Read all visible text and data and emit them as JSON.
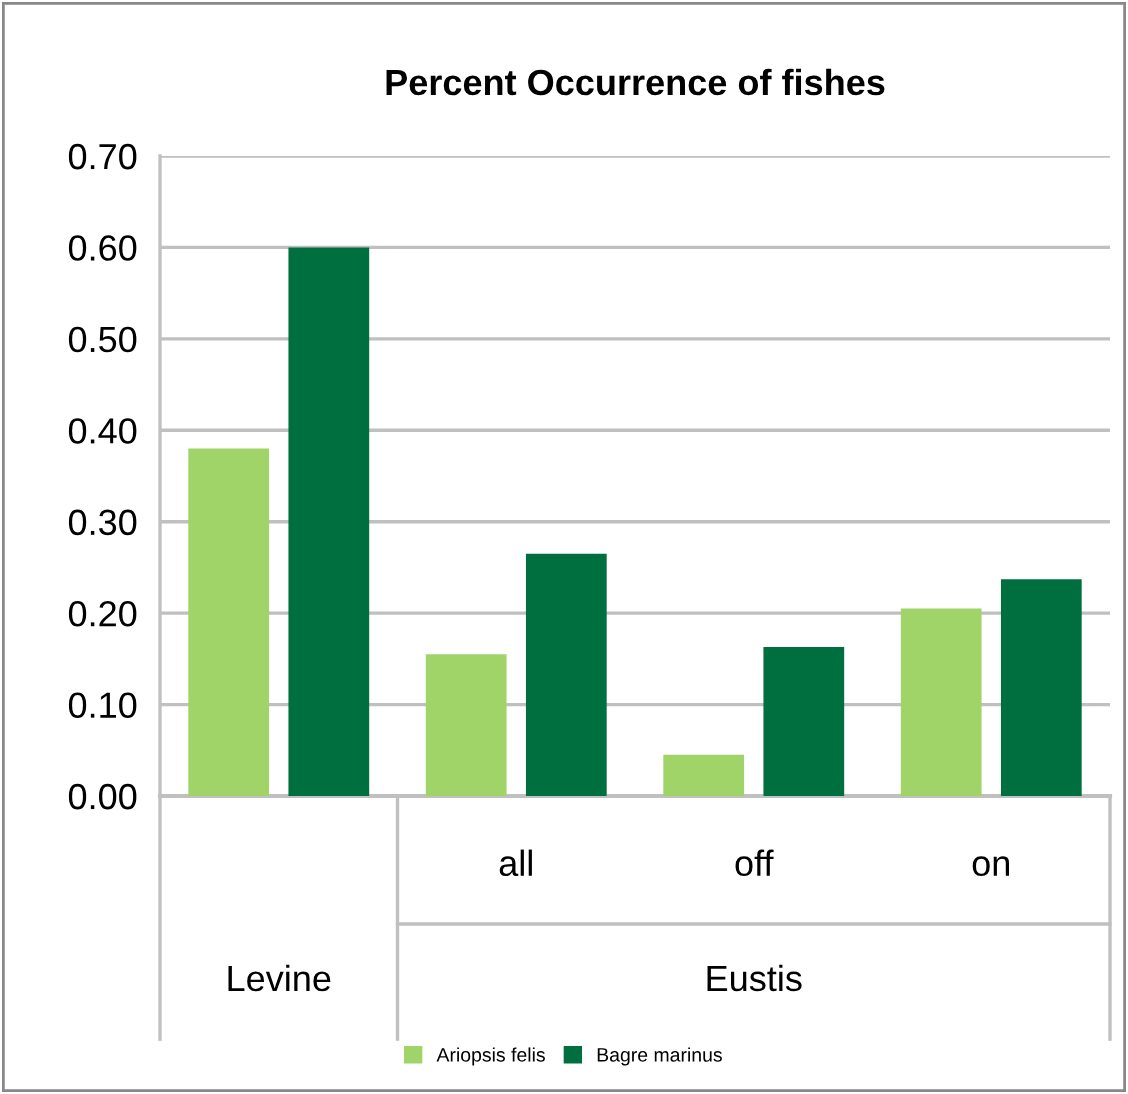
{
  "chart_data": {
    "type": "bar",
    "title": "Percent Occurrence of fishes",
    "categories": [
      null,
      "all",
      "off",
      "on"
    ],
    "series": [
      {
        "name": "Ariopsis felis",
        "color": "#a0d468",
        "values": [
          0.38,
          0.155,
          0.045,
          0.205
        ]
      },
      {
        "name": "Bagre marinus",
        "color": "#006f3f",
        "values": [
          0.6,
          0.265,
          0.163,
          0.237
        ]
      }
    ],
    "annotations": [
      "Levine",
      "Eustis"
    ],
    "ylim": [
      0,
      0.7
    ],
    "yticks": [
      {
        "value": 0,
        "label": "0.00"
      },
      {
        "value": 0.1,
        "label": "0.10"
      },
      {
        "value": 0.2,
        "label": "0.20"
      },
      {
        "value": 0.3,
        "label": "0.30"
      },
      {
        "value": 0.4,
        "label": "0.40"
      },
      {
        "value": 0.5,
        "label": "0.50"
      },
      {
        "value": 0.6,
        "label": "0.60"
      },
      {
        "value": 0.7,
        "label": "0.70"
      }
    ],
    "grid": "y",
    "legend": "bottom"
  }
}
